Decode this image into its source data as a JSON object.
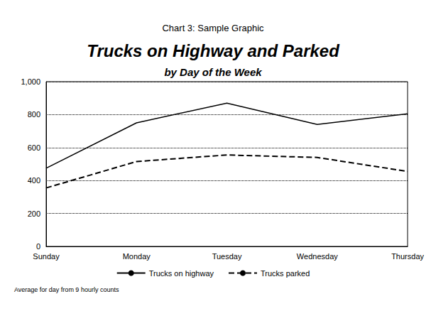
{
  "chart_data": {
    "type": "line",
    "title": "Trucks on Highway and Parked",
    "subtitle": "by Day of the Week",
    "annotations": [
      "Chart 3: Sample Graphic",
      "Average for day from 9 hourly counts"
    ],
    "categories": [
      "Sunday",
      "Monday",
      "Tuesday",
      "Wednesday",
      "Thursday"
    ],
    "series": [
      {
        "name": "Trucks on highway",
        "color": "#000000",
        "line_style": "solid",
        "values": [
          475,
          750,
          870,
          740,
          805
        ]
      },
      {
        "name": "Trucks parked",
        "color": "#000000",
        "line_style": "dashed",
        "values": [
          355,
          515,
          555,
          540,
          455
        ]
      }
    ],
    "ylim": [
      0,
      1000
    ],
    "yticks": [
      0,
      200,
      400,
      600,
      800,
      {
        "value": 1000,
        "label": "1,000"
      }
    ],
    "grid": true,
    "legend": "bottom"
  }
}
